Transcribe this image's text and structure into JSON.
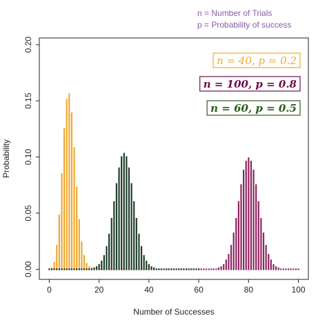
{
  "chart_data": {
    "type": "bar",
    "annotations": [
      "n = Number of Trials",
      "p = Probability of success"
    ],
    "x_label": "Number of Successes",
    "y_label": "Probability",
    "xlim": [
      -4,
      104
    ],
    "ylim": [
      -0.009,
      0.206
    ],
    "xticks": [
      0,
      20,
      40,
      60,
      80,
      100
    ],
    "yticks": [
      {
        "value": 0,
        "label": "0.00"
      },
      0.05,
      {
        "value": 0.1,
        "label": "0.10"
      },
      0.15,
      {
        "value": 0.2,
        "label": "0.20"
      }
    ],
    "x": [
      0,
      1,
      2,
      3,
      4,
      5,
      6,
      7,
      8,
      9,
      10,
      11,
      12,
      13,
      14,
      15,
      16,
      17,
      18,
      19,
      20,
      21,
      22,
      23,
      24,
      25,
      26,
      27,
      28,
      29,
      30,
      31,
      32,
      33,
      34,
      35,
      36,
      37,
      38,
      39,
      40,
      41,
      42,
      43,
      44,
      45,
      46,
      47,
      48,
      49,
      50,
      51,
      52,
      53,
      54,
      55,
      56,
      57,
      58,
      59,
      60,
      61,
      62,
      63,
      64,
      65,
      66,
      67,
      68,
      69,
      70,
      71,
      72,
      73,
      74,
      75,
      76,
      77,
      78,
      79,
      80,
      81,
      82,
      83,
      84,
      85,
      86,
      87,
      88,
      89,
      90,
      91,
      92,
      93,
      94,
      95,
      96,
      97,
      98,
      99,
      100
    ],
    "series": [
      {
        "name": "n = 40, p = 0.2",
        "color": "#f0a830",
        "values": [
          0,
          0.001,
          0.006,
          0.021,
          0.048,
          0.085,
          0.125,
          0.151,
          0.156,
          0.139,
          0.108,
          0.073,
          0.044,
          0.024,
          0.012,
          0.005,
          0.002,
          0.001,
          0,
          0,
          0,
          0,
          0,
          0,
          0,
          0,
          0,
          0,
          0,
          0,
          0,
          0,
          0,
          0,
          0,
          0,
          0,
          0,
          0,
          0,
          0,
          null,
          null,
          null,
          null,
          null,
          null,
          null,
          null,
          null,
          null,
          null,
          null,
          null,
          null,
          null,
          null,
          null,
          null,
          null,
          null,
          null,
          null,
          null,
          null,
          null,
          null,
          null,
          null,
          null,
          null,
          null,
          null,
          null,
          null,
          null,
          null,
          null,
          null,
          null,
          null,
          null,
          null,
          null,
          null,
          null,
          null,
          null,
          null,
          null,
          null,
          null,
          null,
          null,
          null,
          null,
          null,
          null,
          null,
          null,
          null
        ]
      },
      {
        "name": "n = 100, p = 0.8",
        "color": "#8e2462",
        "values": [
          0,
          0,
          0,
          0,
          0,
          0,
          0,
          0,
          0,
          0,
          0,
          0,
          0,
          0,
          0,
          0,
          0,
          0,
          0,
          0,
          0,
          0,
          0,
          0,
          0,
          0,
          0,
          0,
          0,
          0,
          0,
          0,
          0,
          0,
          0,
          0,
          0,
          0,
          0,
          0,
          0,
          0,
          0,
          0,
          0,
          0,
          0,
          0,
          0,
          0,
          0,
          0,
          0,
          0,
          0,
          0,
          0,
          0,
          0,
          0,
          0,
          0,
          0,
          0,
          0,
          0,
          0,
          0,
          0.001,
          0.002,
          0.004,
          0.008,
          0.013,
          0.021,
          0.032,
          0.045,
          0.06,
          0.075,
          0.088,
          0.096,
          0.099,
          0.096,
          0.088,
          0.075,
          0.06,
          0.045,
          0.032,
          0.021,
          0.013,
          0.008,
          0.004,
          0.002,
          0.001,
          0,
          0,
          0,
          0,
          0,
          0,
          0,
          0
        ]
      },
      {
        "name": "n = 60, p = 0.5",
        "color": "#1f3d2a",
        "values": [
          0,
          0,
          0,
          0,
          0,
          0,
          0,
          0,
          0,
          0,
          0,
          0,
          0,
          0,
          0,
          0,
          0,
          0,
          0.001,
          0.002,
          0.004,
          0.007,
          0.012,
          0.02,
          0.031,
          0.045,
          0.06,
          0.076,
          0.09,
          0.1,
          0.103,
          0.1,
          0.09,
          0.076,
          0.06,
          0.045,
          0.031,
          0.02,
          0.012,
          0.007,
          0.004,
          0.002,
          0.001,
          0,
          0,
          0,
          0,
          0,
          0,
          0,
          0,
          0,
          0,
          0,
          0,
          0,
          0,
          0,
          0,
          0,
          0,
          null,
          null,
          null,
          null,
          null,
          null,
          null,
          null,
          null,
          null,
          null,
          null,
          null,
          null,
          null,
          null,
          null,
          null,
          null,
          null,
          null,
          null,
          null,
          null,
          null,
          null,
          null,
          null,
          null,
          null,
          null,
          null,
          null,
          null,
          null,
          null,
          null,
          null,
          null,
          null
        ]
      }
    ],
    "legend_colors": [
      "#f0a830",
      "#6e0f4a",
      "#2f5a1f"
    ],
    "annotation_color": "#8a5aa8"
  }
}
